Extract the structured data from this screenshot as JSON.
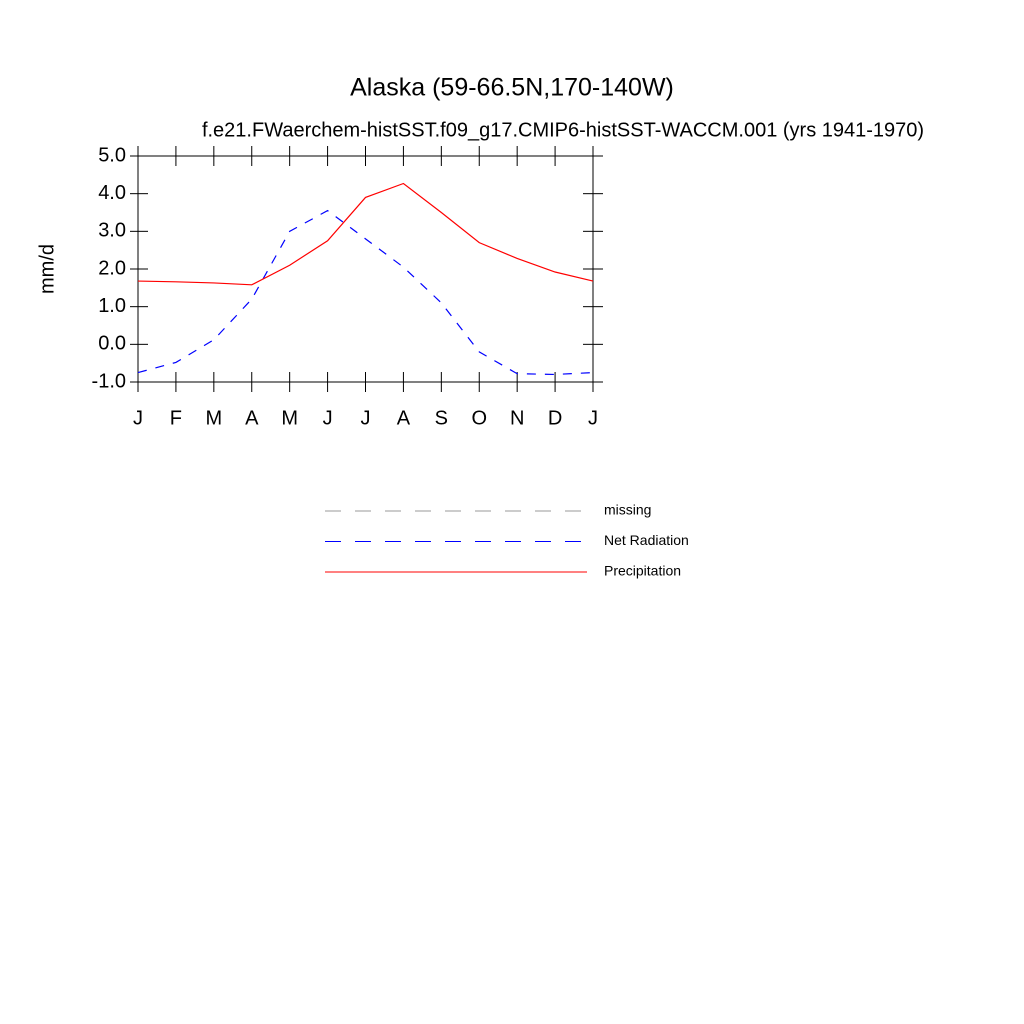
{
  "chart_data": {
    "type": "line",
    "title": "Alaska (59-66.5N,170-140W)",
    "subtitle": "f.e21.FWaerchem-histSST.f09_g17.CMIP6-histSST-WACCM.001 (yrs 1941-1970)",
    "y_label": "mm/d",
    "categories": [
      "J",
      "F",
      "M",
      "A",
      "M",
      "J",
      "J",
      "A",
      "S",
      "O",
      "N",
      "D",
      "J"
    ],
    "series": [
      {
        "name": "missing",
        "color": "#999999",
        "dash": true,
        "values": [
          null,
          null,
          null,
          null,
          null,
          null,
          null,
          null,
          null,
          null,
          null,
          null,
          null
        ]
      },
      {
        "name": "Net Radiation",
        "color": "#0000ff",
        "dash": true,
        "values": [
          -0.75,
          -0.48,
          0.12,
          1.2,
          3.0,
          3.55,
          2.8,
          2.05,
          1.1,
          -0.2,
          -0.78,
          -0.8,
          -0.75
        ]
      },
      {
        "name": "Precipitation",
        "color": "#ff0000",
        "dash": false,
        "values": [
          1.68,
          1.66,
          1.63,
          1.58,
          2.1,
          2.75,
          3.9,
          4.27,
          3.5,
          2.7,
          2.28,
          1.92,
          1.68
        ]
      }
    ],
    "ylim": [
      -1,
      5
    ],
    "yticks": [
      {
        "value": -1,
        "label": "-1.0"
      },
      {
        "value": 0,
        "label": "0.0"
      },
      {
        "value": 1,
        "label": "1.0"
      },
      {
        "value": 2,
        "label": "2.0"
      },
      {
        "value": 3,
        "label": "3.0"
      },
      {
        "value": 4,
        "label": "4.0"
      },
      {
        "value": 5,
        "label": "5.0"
      }
    ],
    "grid": false
  }
}
